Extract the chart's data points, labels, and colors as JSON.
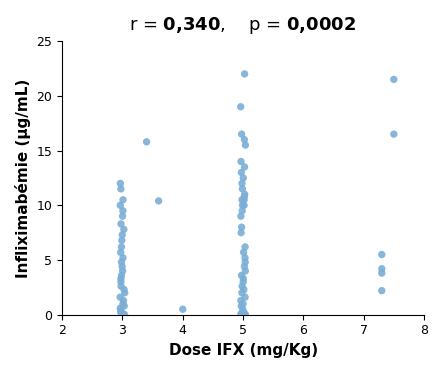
{
  "xlabel": "Dose IFX (mg/Kg)",
  "ylabel": "Infliximabémie (µg/mL)",
  "xlim": [
    2,
    8
  ],
  "ylim": [
    0,
    25
  ],
  "xticks": [
    2,
    3,
    4,
    5,
    6,
    7,
    8
  ],
  "yticks": [
    0,
    5,
    10,
    15,
    20,
    25
  ],
  "dot_color": "#7aaed6",
  "dot_size": 28,
  "title_fontsize": 13,
  "label_fontsize": 11,
  "tick_fontsize": 9,
  "scatter_x": [
    3.0,
    3.0,
    3.0,
    3.0,
    3.0,
    3.0,
    3.0,
    3.0,
    3.0,
    3.0,
    3.0,
    3.0,
    3.0,
    3.0,
    3.0,
    3.0,
    3.0,
    3.0,
    3.0,
    3.0,
    3.0,
    3.0,
    3.0,
    3.0,
    3.0,
    3.0,
    3.0,
    3.0,
    3.0,
    3.0,
    3.0,
    3.0,
    3.0,
    3.4,
    3.6,
    4.0,
    5.0,
    5.0,
    5.0,
    5.0,
    5.0,
    5.0,
    5.0,
    5.0,
    5.0,
    5.0,
    5.0,
    5.0,
    5.0,
    5.0,
    5.0,
    5.0,
    5.0,
    5.0,
    5.0,
    5.0,
    5.0,
    5.0,
    5.0,
    5.0,
    5.0,
    5.0,
    5.0,
    5.0,
    5.0,
    5.0,
    5.0,
    5.0,
    5.0,
    5.0,
    5.0,
    5.0,
    5.0,
    5.0,
    5.0,
    5.0,
    5.0,
    5.0,
    5.0,
    5.0,
    5.0,
    7.3,
    7.3,
    7.3,
    7.3,
    7.5,
    7.5
  ],
  "scatter_y": [
    0.0,
    0.0,
    0.0,
    0.1,
    0.2,
    0.4,
    0.6,
    0.8,
    1.0,
    1.3,
    1.6,
    2.0,
    2.3,
    2.6,
    3.0,
    3.3,
    3.6,
    4.0,
    4.4,
    4.8,
    5.2,
    5.7,
    6.2,
    6.8,
    7.3,
    7.8,
    8.3,
    9.0,
    9.5,
    10.0,
    10.5,
    11.5,
    12.0,
    15.8,
    10.4,
    0.5,
    0.0,
    0.0,
    0.0,
    0.0,
    0.1,
    0.2,
    0.5,
    0.8,
    1.0,
    1.3,
    1.6,
    2.0,
    2.3,
    2.6,
    3.0,
    3.3,
    3.6,
    4.0,
    4.4,
    4.8,
    5.2,
    5.7,
    6.2,
    7.5,
    8.0,
    9.0,
    9.5,
    10.0,
    10.5,
    11.0,
    11.5,
    12.0,
    12.5,
    13.0,
    13.5,
    14.0,
    15.5,
    16.0,
    16.5,
    19.0,
    22.0,
    10.0,
    10.5,
    10.8,
    0.0,
    2.2,
    3.8,
    4.2,
    5.5,
    16.5,
    21.5
  ],
  "background_color": "#ffffff"
}
